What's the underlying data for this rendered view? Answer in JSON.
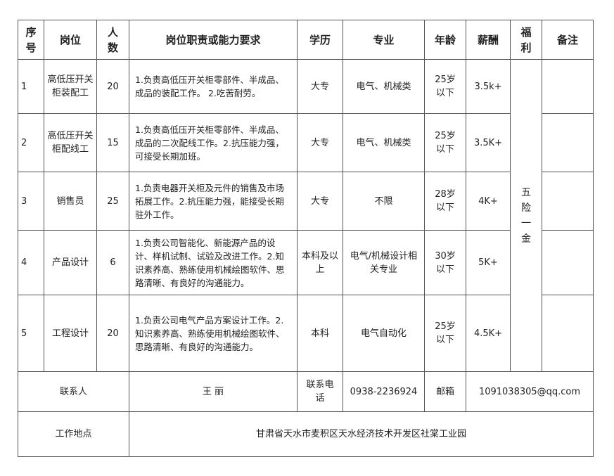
{
  "headers": [
    "序号",
    "岗位",
    "人数",
    "岗位职责或能力要求",
    "学历",
    "专业",
    "年龄",
    "薪酬",
    "福利",
    "备注"
  ],
  "rows": [
    {
      "no": "1",
      "position": "高低压开关柜装配工",
      "count": "20",
      "duty": "1.负责高低压开关柜零部件、半成品、成品的装配工作。 2.吃苦耐劳。",
      "edu": "大专",
      "major": "电气、机械类",
      "age": "25岁以下",
      "salary": "3.5k+",
      "note": ""
    },
    {
      "no": "2",
      "position": "高低压开关柜配线工",
      "count": "15",
      "duty": "1.负责高低压开关柜零部件、半成品、成品的二次配线工作。2.抗压能力强，可接受长期加班。",
      "edu": "大专",
      "major": "电气、机械类",
      "age": "25岁以下",
      "salary": "3.5K+",
      "note": ""
    },
    {
      "no": "3",
      "position": "销售员",
      "count": "25",
      "duty": "1.负责电器开关柜及元件的销售及市场拓展工作。2.抗压能力强，能接受长期驻外工作。",
      "edu": "大专",
      "major": "不限",
      "age": "28岁以下",
      "salary": "4K+",
      "note": ""
    },
    {
      "no": "4",
      "position": "产品设计",
      "count": "6",
      "duty": "1.负责公司智能化、新能源产品的设计、样机试制、试验及改进工作。2.知识素养高、熟练使用机械绘图软件、思路清晰、有良好的沟通能力。",
      "edu": "本科及以上",
      "major": "电气/机械设计相关专业",
      "age": "30岁以下",
      "salary": "5K+",
      "note": ""
    },
    {
      "no": "5",
      "position": "工程设计",
      "count": "20",
      "duty": "1.负责公司电气产品方案设计工作。2.知识素养高、熟练使用机械绘图软件、思路清晰、有良好的沟通能力。",
      "edu": "本科",
      "major": "电气自动化",
      "age": "25岁以下",
      "salary": "4.5K+",
      "note": ""
    }
  ],
  "welfare": "五险一金",
  "contact": {
    "label": "联系人",
    "name": "王 丽",
    "phone_label": "联系电话",
    "phone": "0938-2236924",
    "email_label": "邮箱",
    "email": "1091038305@qq.com"
  },
  "location": {
    "label": "工作地点",
    "address": "甘肃省天水市麦积区天水经济技术开发区社棠工业园"
  }
}
